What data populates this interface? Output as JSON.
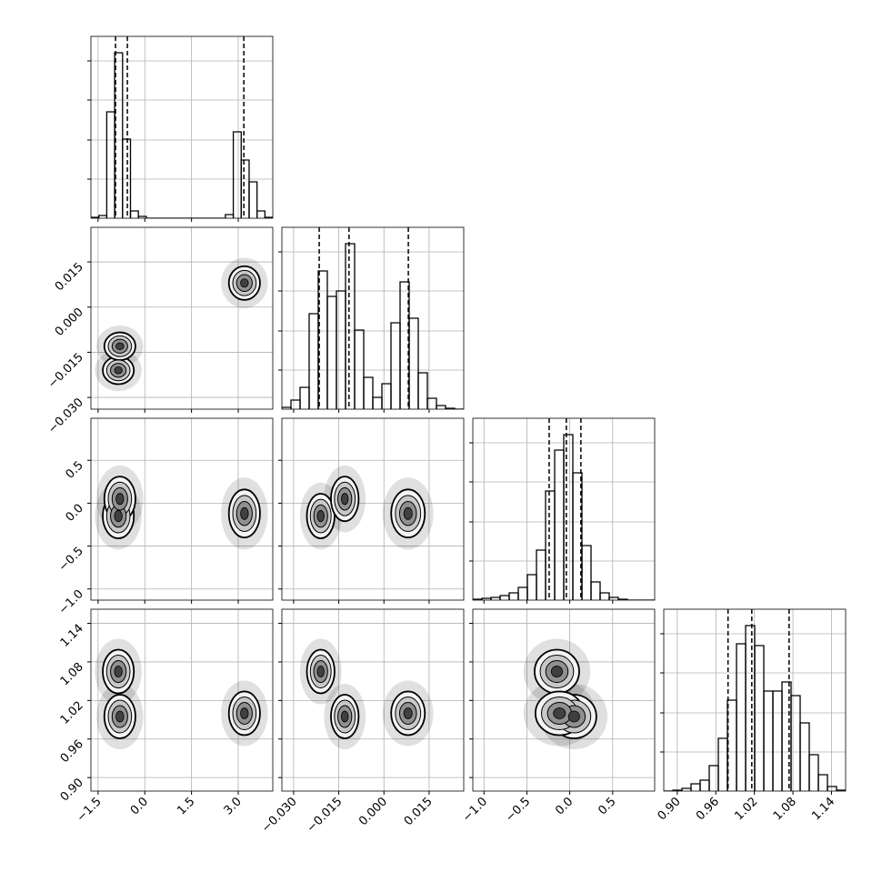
{
  "chart_data": {
    "type": "corner",
    "axes": [
      {
        "lim": [
          -1.73,
          4.11
        ],
        "ticks": [
          {
            "value": -1.5,
            "label": "−1.5"
          },
          {
            "value": 0.0,
            "label": "0.0"
          },
          {
            "value": 1.5,
            "label": "1.5"
          },
          {
            "value": 3.0,
            "label": "3.0"
          }
        ]
      },
      {
        "lim": [
          -0.0339,
          0.0265
        ],
        "ticks": [
          {
            "value": -0.03,
            "label": "−0.030"
          },
          {
            "value": -0.015,
            "label": "−0.015"
          },
          {
            "value": 0.0,
            "label": "0.000"
          },
          {
            "value": 0.015,
            "label": "0.015"
          }
        ]
      },
      {
        "lim": [
          -1.13,
          0.99
        ],
        "ticks": [
          {
            "value": -1.0,
            "label": "−1.0"
          },
          {
            "value": -0.5,
            "label": "−0.5"
          },
          {
            "value": 0.0,
            "label": "0.0"
          },
          {
            "value": 0.5,
            "label": "0.5"
          }
        ]
      },
      {
        "lim": [
          0.879,
          1.162
        ],
        "ticks": [
          {
            "value": 0.9,
            "label": "0.90"
          },
          {
            "value": 0.96,
            "label": "0.96"
          },
          {
            "value": 1.02,
            "label": "1.02"
          },
          {
            "value": 1.08,
            "label": "1.08"
          },
          {
            "value": 1.14,
            "label": "1.14"
          }
        ]
      }
    ],
    "histograms": [
      {
        "bins": [
          -1.73,
          -1.476,
          -1.222,
          -0.968,
          -0.714,
          -0.46,
          -0.206,
          0.048,
          0.302,
          0.556,
          0.81,
          1.064,
          1.318,
          1.572,
          1.826,
          2.08,
          2.334,
          2.588,
          2.842,
          3.096,
          3.35,
          3.604,
          3.858,
          4.112
        ],
        "counts": [
          1,
          3,
          117,
          182,
          87,
          8,
          2,
          0,
          0,
          0,
          0,
          0,
          0,
          0,
          0,
          0,
          0,
          4,
          95,
          64,
          40,
          8,
          1
        ],
        "quantiles": [
          -0.94,
          -0.56,
          3.18
        ]
      },
      {
        "bins": [
          -0.0339,
          -0.03088,
          -0.02786,
          -0.02484,
          -0.02182,
          -0.0188,
          -0.01578,
          -0.01276,
          -0.00974,
          -0.00672,
          -0.0037,
          -0.00068,
          0.00234,
          0.00536,
          0.00838,
          0.0114,
          0.01442,
          0.01744,
          0.02046,
          0.02348,
          0.0265
        ],
        "counts": [
          2,
          10,
          24,
          105,
          152,
          124,
          130,
          182,
          87,
          35,
          13,
          28,
          95,
          140,
          100,
          40,
          12,
          4,
          1,
          0
        ],
        "quantiles": [
          -0.0215,
          -0.0116,
          0.0081
        ]
      },
      {
        "bins": [
          -1.13,
          -1.024,
          -0.918,
          -0.812,
          -0.706,
          -0.6,
          -0.494,
          -0.388,
          -0.282,
          -0.176,
          -0.07,
          0.036,
          0.142,
          0.248,
          0.354,
          0.46,
          0.566,
          0.672,
          0.778,
          0.884,
          0.99
        ],
        "counts": [
          1,
          2,
          3,
          5,
          8,
          14,
          28,
          55,
          120,
          165,
          182,
          140,
          60,
          20,
          8,
          3,
          1,
          0,
          0,
          0
        ],
        "quantiles": [
          -0.24,
          -0.04,
          0.13
        ]
      },
      {
        "bins": [
          0.879,
          0.89315,
          0.9073,
          0.92145,
          0.9356,
          0.94975,
          0.9639,
          0.97805,
          0.9922,
          1.00635,
          1.0205,
          1.03465,
          1.0488,
          1.06295,
          1.0771,
          1.09125,
          1.1054,
          1.11955,
          1.1337,
          1.14785,
          1.162
        ],
        "counts": [
          0,
          1,
          3,
          8,
          12,
          28,
          58,
          100,
          162,
          182,
          160,
          110,
          110,
          120,
          105,
          75,
          40,
          18,
          5,
          1
        ],
        "quantiles": [
          0.979,
          1.016,
          1.074
        ]
      }
    ],
    "hist_ylim": [
      0,
      200
    ],
    "hist_yticks": [
      43,
      86,
      130,
      173
    ],
    "modes": [
      {
        "center": [
          -0.85,
          -0.021,
          -0.15,
          1.065
        ],
        "spread": [
          0.25,
          0.0023,
          0.13,
          0.017
        ]
      },
      {
        "center": [
          -0.8,
          -0.013,
          0.05,
          0.995
        ],
        "spread": [
          0.25,
          0.0023,
          0.13,
          0.017
        ]
      },
      {
        "center": [
          3.2,
          0.008,
          -0.12,
          1.0
        ],
        "spread": [
          0.25,
          0.0028,
          0.14,
          0.017
        ]
      }
    ],
    "grid": true,
    "color": "#000000"
  }
}
